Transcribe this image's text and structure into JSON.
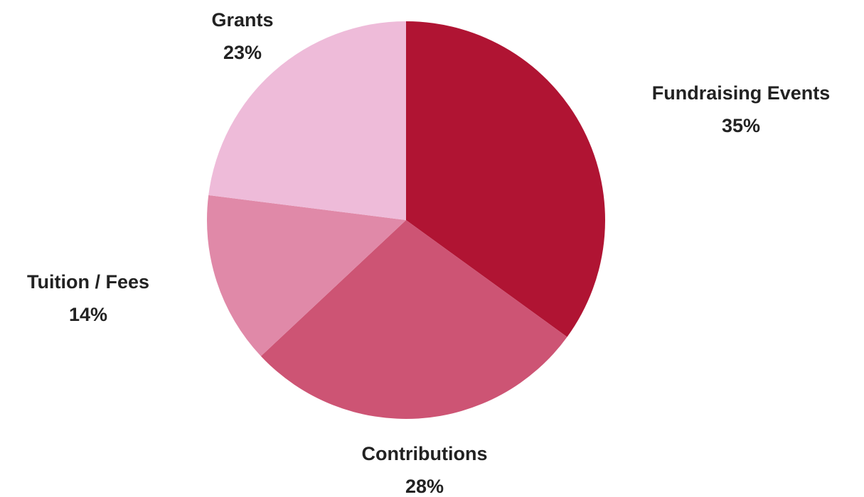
{
  "chart_data": {
    "type": "pie",
    "title": "",
    "legend": "none",
    "start_angle_deg": 0,
    "direction": "clockwise",
    "slices": [
      {
        "label": "Fundraising Events",
        "value": 35,
        "value_label": "35%",
        "color": "#b01433"
      },
      {
        "label": "Contributions",
        "value": 28,
        "value_label": "28%",
        "color": "#cd5474"
      },
      {
        "label": "Tuition / Fees",
        "value": 14,
        "value_label": "14%",
        "color": "#e089a8"
      },
      {
        "label": "Grants",
        "value": 23,
        "value_label": "23%",
        "color": "#eebbd9"
      }
    ]
  }
}
